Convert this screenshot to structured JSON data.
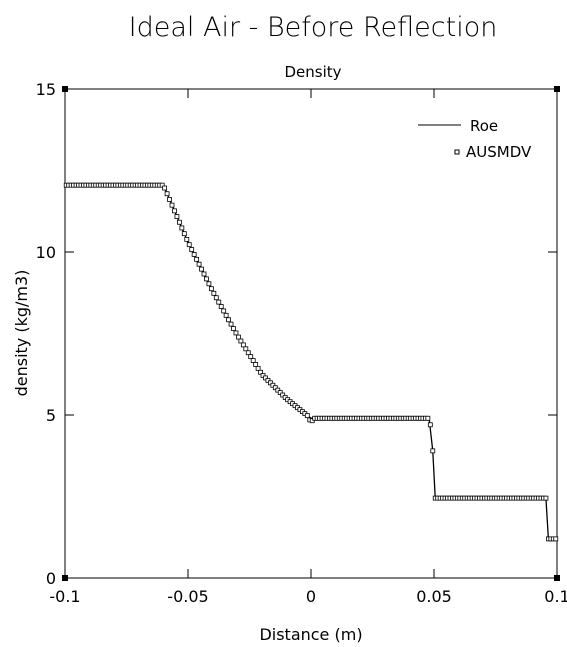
{
  "chart_data": {
    "type": "line",
    "title": "Ideal Air - Before Reflection",
    "subtitle": "Density",
    "xlabel": "Distance (m)",
    "ylabel": "density (kg/m3)",
    "xlim": [
      -0.1,
      0.1
    ],
    "ylim": [
      0,
      15
    ],
    "x_ticks": [
      -0.1,
      -0.05,
      0,
      0.05,
      0.1
    ],
    "x_tick_labels": [
      "-0.1",
      "-0.05",
      "0",
      "0.05",
      "0.1"
    ],
    "y_ticks": [
      0,
      5,
      10,
      15
    ],
    "y_tick_labels": [
      "0",
      "5",
      "10",
      "15"
    ],
    "grid": false,
    "legend_position": "top-right",
    "series": [
      {
        "name": "Roe",
        "style": "solid-line",
        "color": "#000000",
        "x": [
          -0.1,
          -0.06,
          -0.05,
          -0.04,
          -0.03,
          -0.02,
          -0.01,
          0.0,
          0.048,
          0.0495,
          0.0505,
          0.0955,
          0.0965,
          0.1
        ],
        "y": [
          12.05,
          12.05,
          10.3,
          8.8,
          7.45,
          6.25,
          5.5,
          4.9,
          4.9,
          3.9,
          2.45,
          2.45,
          1.2,
          1.2
        ]
      },
      {
        "name": "AUSMDV",
        "style": "square-markers",
        "color": "#000000",
        "x": [
          -0.1,
          -0.06,
          -0.05,
          -0.04,
          -0.03,
          -0.02,
          -0.01,
          -0.001,
          0.0,
          0.001,
          0.048,
          0.0485,
          0.0495,
          0.0505,
          0.0955,
          0.0965,
          0.1
        ],
        "y": [
          12.05,
          12.05,
          10.3,
          8.8,
          7.45,
          6.25,
          5.5,
          4.95,
          4.75,
          4.9,
          4.9,
          4.7,
          3.9,
          2.45,
          2.45,
          1.2,
          1.2
        ]
      }
    ]
  }
}
